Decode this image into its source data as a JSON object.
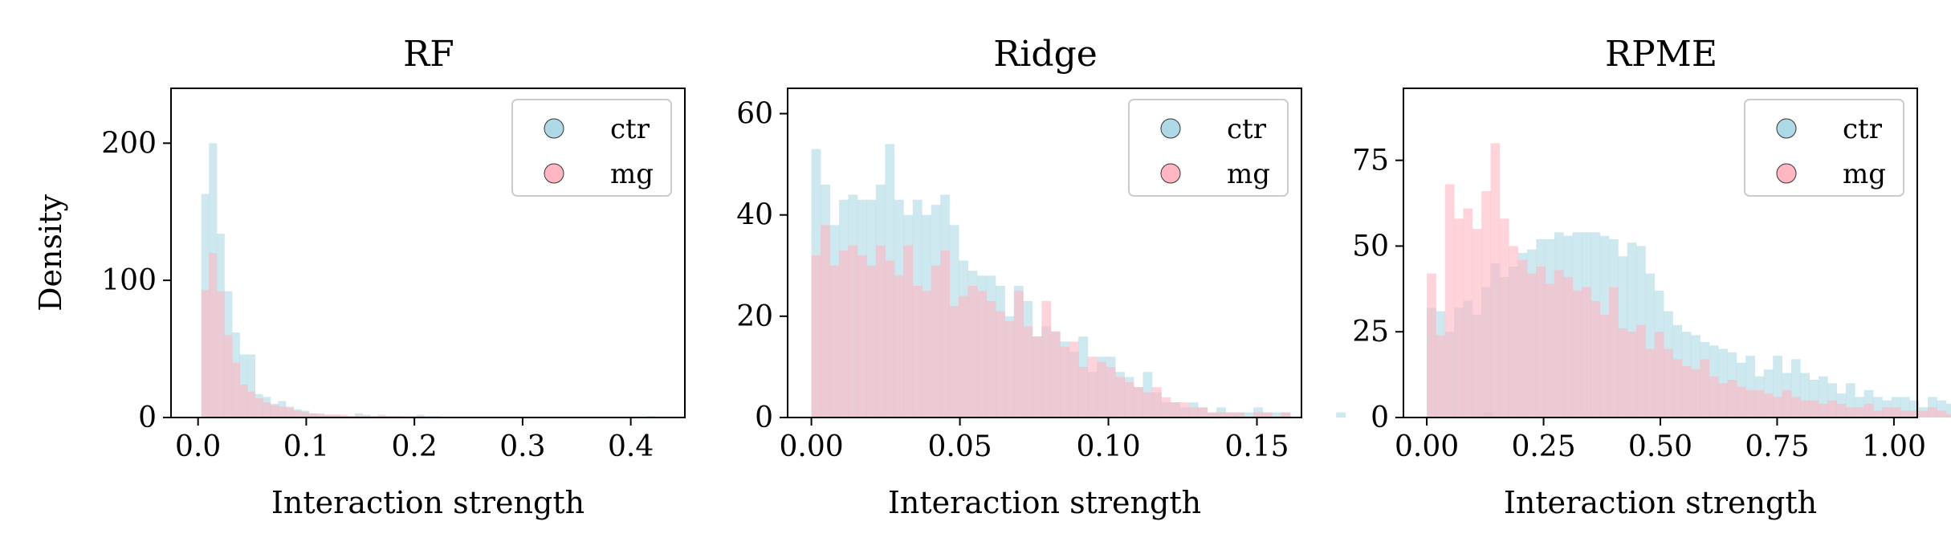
{
  "figure": {
    "ylabel": "Density",
    "series_colors": {
      "ctr": "#add8e6",
      "mg": "#ffb6c1"
    },
    "bar_opacity": 0.6
  },
  "chart_data": [
    {
      "type": "bar",
      "title": "RF",
      "xlabel": "Interaction strength",
      "ylabel": "Density",
      "xlim": [
        -0.025,
        0.45
      ],
      "ylim": [
        0,
        240
      ],
      "xticks": [
        0.0,
        0.1,
        0.2,
        0.3,
        0.4
      ],
      "xtick_labels": [
        "0.0",
        "0.1",
        "0.2",
        "0.3",
        "0.4"
      ],
      "yticks": [
        0,
        100,
        200
      ],
      "ytick_labels": [
        "0",
        "100",
        "200"
      ],
      "legend": {
        "position": "top-right",
        "entries": [
          "ctr",
          "mg"
        ]
      },
      "bin_start": 0.003,
      "bin_width": 0.0071,
      "series": [
        {
          "name": "ctr",
          "values": [
            163,
            200,
            134,
            92,
            62,
            46,
            46,
            17,
            15,
            10,
            12,
            8,
            6,
            5,
            3,
            2,
            2,
            2,
            1,
            1,
            3,
            2,
            1,
            2,
            1,
            1,
            0,
            1,
            2,
            1,
            1,
            0,
            0,
            0,
            0,
            0,
            0,
            0,
            0,
            0,
            0,
            0,
            0,
            0,
            0,
            0,
            0,
            0,
            0,
            0,
            0,
            0,
            0,
            0,
            0,
            0,
            0,
            0,
            1
          ]
        },
        {
          "name": "mg",
          "values": [
            93,
            120,
            92,
            60,
            40,
            24,
            19,
            14,
            11,
            9,
            8,
            7,
            5,
            4,
            3,
            3,
            2,
            2,
            2,
            1,
            1,
            1,
            1,
            1,
            1,
            1,
            1,
            0,
            1,
            0,
            0,
            0,
            0,
            0,
            0,
            0,
            0,
            0,
            0,
            0,
            0,
            0,
            0,
            0,
            0,
            0,
            0,
            0,
            0,
            0,
            0,
            0,
            0,
            0,
            0,
            0,
            0,
            0,
            0
          ]
        }
      ]
    },
    {
      "type": "bar",
      "title": "Ridge",
      "xlabel": "Interaction strength",
      "ylabel": "",
      "xlim": [
        -0.008,
        0.165
      ],
      "ylim": [
        0,
        65
      ],
      "xticks": [
        0.0,
        0.05,
        0.1,
        0.15
      ],
      "xtick_labels": [
        "0.00",
        "0.05",
        "0.10",
        "0.15"
      ],
      "yticks": [
        0,
        20,
        40,
        60
      ],
      "ytick_labels": [
        "0",
        "20",
        "40",
        "60"
      ],
      "legend": {
        "position": "top-right",
        "entries": [
          "ctr",
          "mg"
        ]
      },
      "bin_start": 0.0,
      "bin_width": 0.0031,
      "series": [
        {
          "name": "ctr",
          "values": [
            53,
            46,
            38,
            43,
            44,
            43,
            43,
            46,
            54,
            43,
            40,
            43,
            40,
            42,
            44,
            38,
            31,
            29,
            28,
            28,
            26,
            20,
            26,
            23,
            16,
            18,
            17,
            15,
            13,
            16,
            9,
            12,
            12,
            9,
            8,
            6,
            9,
            5,
            3,
            3,
            2,
            3,
            2,
            1,
            2,
            1,
            1,
            1,
            2,
            1,
            1,
            1,
            0,
            0,
            0,
            0,
            0,
            1,
            0,
            0,
            0,
            0,
            0,
            0,
            0,
            0,
            0,
            0,
            0,
            0,
            0,
            0,
            0,
            1
          ]
        },
        {
          "name": "mg",
          "values": [
            32,
            38,
            30,
            33,
            34,
            32,
            30,
            34,
            31,
            28,
            34,
            26,
            25,
            30,
            33,
            22,
            24,
            26,
            25,
            23,
            21,
            19,
            25,
            18,
            16,
            23,
            17,
            14,
            15,
            10,
            12,
            11,
            10,
            8,
            7,
            6,
            5,
            6,
            4,
            3,
            3,
            2,
            2,
            1,
            1,
            1,
            1,
            0,
            1,
            1,
            0,
            1,
            0,
            0,
            0,
            0,
            0,
            0,
            0,
            0,
            0,
            0,
            0,
            0,
            0,
            0,
            0,
            0,
            0,
            0,
            0,
            0,
            0,
            0
          ]
        }
      ]
    },
    {
      "type": "bar",
      "title": "RPME",
      "xlabel": "Interaction strength",
      "ylabel": "",
      "xlim": [
        -0.05,
        1.05
      ],
      "ylim": [
        0,
        96
      ],
      "xticks": [
        0.0,
        0.25,
        0.5,
        0.75,
        1.0
      ],
      "xtick_labels": [
        "0.00",
        "0.25",
        "0.50",
        "0.75",
        "1.00"
      ],
      "yticks": [
        0,
        25,
        50,
        75
      ],
      "ytick_labels": [
        "0",
        "25",
        "50",
        "75"
      ],
      "legend": {
        "position": "top-right",
        "entries": [
          "ctr",
          "mg"
        ]
      },
      "bin_start": 0.0,
      "bin_width": 0.0195,
      "series": [
        {
          "name": "ctr",
          "values": [
            32,
            31,
            25,
            32,
            34,
            30,
            38,
            45,
            41,
            44,
            48,
            49,
            52,
            52,
            54,
            53,
            54,
            54,
            54,
            53,
            52,
            47,
            51,
            50,
            42,
            37,
            31,
            27,
            25,
            24,
            22,
            21,
            20,
            19,
            16,
            18,
            12,
            14,
            18,
            13,
            17,
            13,
            11,
            12,
            10,
            7,
            10,
            6,
            8,
            6,
            5,
            6,
            6,
            5,
            3,
            6,
            5,
            4,
            3,
            3,
            2,
            2,
            2,
            2,
            1,
            1,
            1,
            1,
            1,
            1,
            1,
            1,
            1,
            1,
            1,
            1,
            1,
            0,
            0,
            0,
            0,
            0,
            0,
            0,
            0,
            0,
            0,
            0,
            1,
            1,
            1
          ]
        },
        {
          "name": "mg",
          "values": [
            42,
            24,
            68,
            58,
            61,
            55,
            66,
            80,
            58,
            50,
            46,
            42,
            44,
            39,
            43,
            41,
            37,
            38,
            34,
            30,
            38,
            26,
            25,
            27,
            20,
            25,
            20,
            17,
            15,
            14,
            17,
            12,
            10,
            11,
            9,
            8,
            8,
            7,
            6,
            8,
            6,
            5,
            5,
            4,
            5,
            4,
            3,
            3,
            4,
            2,
            3,
            3,
            2,
            2,
            2,
            3,
            2,
            1,
            2,
            1,
            1,
            1,
            1,
            1,
            1,
            1,
            1,
            1,
            1,
            1,
            0,
            0,
            0,
            0,
            0,
            0,
            0,
            0,
            0,
            0,
            0,
            0,
            0,
            0,
            0,
            0,
            0,
            1,
            0,
            0,
            0
          ]
        }
      ]
    }
  ]
}
